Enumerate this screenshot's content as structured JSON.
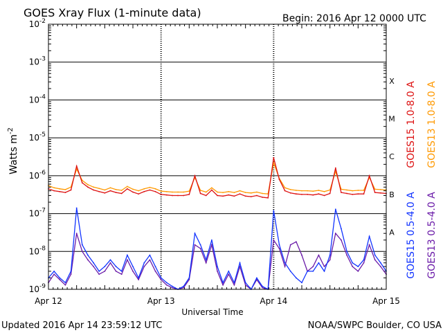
{
  "header": {
    "title": "GOES Xray Flux (1-minute data)",
    "begin": "Begin:  2016 Apr 12 0000 UTC"
  },
  "footer": {
    "updated": "Updated 2016 Apr 14 23:59:12 UTC",
    "credit": "NOAA/SWPC Boulder, CO USA"
  },
  "colors": {
    "goes15_long": "#dd1111",
    "goes13_long": "#ff9900",
    "goes15_short": "#1133ff",
    "goes13_short": "#6a1aa8",
    "frame": "#000000"
  },
  "chart_data": {
    "type": "line",
    "title": "GOES Xray Flux (1-minute data)",
    "xlabel": "Universal Time",
    "ylabel": "Watts m",
    "ylabel_sup": "-2",
    "y_scale": "log",
    "ylim": [
      1e-09,
      0.01
    ],
    "xlim": [
      0,
      3
    ],
    "grid": "horizontal lines at each decade, dotted vertical lines at day boundaries",
    "legend_placement": "right, vertical text",
    "x_ticks": [
      {
        "label": "Apr 12",
        "value": 0
      },
      {
        "label": "Apr 13",
        "value": 1
      },
      {
        "label": "Apr 14",
        "value": 2
      },
      {
        "label": "Apr 15",
        "value": 3
      }
    ],
    "y_ticks": [
      {
        "base": "10",
        "exp": "-2",
        "value": 0.01
      },
      {
        "base": "10",
        "exp": "-3",
        "value": 0.001
      },
      {
        "base": "10",
        "exp": "-4",
        "value": 0.0001
      },
      {
        "base": "10",
        "exp": "-5",
        "value": 1e-05
      },
      {
        "base": "10",
        "exp": "-6",
        "value": 1e-06
      },
      {
        "base": "10",
        "exp": "-7",
        "value": 1e-07
      },
      {
        "base": "10",
        "exp": "-8",
        "value": 1e-08
      },
      {
        "base": "10",
        "exp": "-9",
        "value": 1e-09
      }
    ],
    "flare_classes": [
      {
        "label": "X",
        "value": 0.00032
      },
      {
        "label": "M",
        "value": 3.2e-05
      },
      {
        "label": "C",
        "value": 3.2e-06
      },
      {
        "label": "B",
        "value": 3.2e-07
      },
      {
        "label": "A",
        "value": 3.2e-08
      }
    ],
    "series": [
      {
        "name": "GOES15 1.0-8.0 A",
        "color_key": "goes15_long",
        "x": [
          0,
          0.05,
          0.1,
          0.15,
          0.2,
          0.25,
          0.3,
          0.35,
          0.4,
          0.45,
          0.5,
          0.55,
          0.6,
          0.65,
          0.7,
          0.75,
          0.8,
          0.85,
          0.9,
          0.95,
          1.0,
          1.05,
          1.1,
          1.15,
          1.2,
          1.25,
          1.3,
          1.35,
          1.4,
          1.45,
          1.5,
          1.55,
          1.6,
          1.65,
          1.7,
          1.75,
          1.8,
          1.85,
          1.9,
          1.95,
          2.0,
          2.05,
          2.1,
          2.15,
          2.2,
          2.25,
          2.3,
          2.35,
          2.4,
          2.45,
          2.5,
          2.55,
          2.6,
          2.65,
          2.7,
          2.75,
          2.8,
          2.85,
          2.9,
          2.95,
          3.0
        ],
        "y": [
          4.5e-07,
          4e-07,
          3.8e-07,
          3.6e-07,
          4.2e-07,
          1.8e-06,
          6.5e-07,
          5e-07,
          4.2e-07,
          3.8e-07,
          3.5e-07,
          4e-07,
          3.6e-07,
          3.4e-07,
          4.5e-07,
          3.7e-07,
          3.3e-07,
          3.8e-07,
          4.2e-07,
          3.8e-07,
          3.2e-07,
          3.1e-07,
          3e-07,
          3e-07,
          3e-07,
          3.2e-07,
          1e-06,
          3.4e-07,
          3e-07,
          4.2e-07,
          3e-07,
          2.9e-07,
          3.1e-07,
          2.9e-07,
          3.3e-07,
          2.9e-07,
          2.8e-07,
          3e-07,
          2.7e-07,
          2.6e-07,
          3e-06,
          8e-07,
          4e-07,
          3.5e-07,
          3.3e-07,
          3.2e-07,
          3.2e-07,
          3.1e-07,
          3.3e-07,
          3e-07,
          3.4e-07,
          1.6e-06,
          3.6e-07,
          3.4e-07,
          3.2e-07,
          3.3e-07,
          3.3e-07,
          1e-06,
          3.6e-07,
          3.5e-07,
          3.4e-07
        ]
      },
      {
        "name": "GOES13 1.0-8.0 A",
        "color_key": "goes13_long",
        "x": [
          0,
          0.05,
          0.1,
          0.15,
          0.2,
          0.25,
          0.3,
          0.35,
          0.4,
          0.45,
          0.5,
          0.55,
          0.6,
          0.65,
          0.7,
          0.75,
          0.8,
          0.85,
          0.9,
          0.95,
          1.0,
          1.05,
          1.1,
          1.15,
          1.2,
          1.25,
          1.3,
          1.35,
          1.4,
          1.45,
          1.5,
          1.55,
          1.6,
          1.65,
          1.7,
          1.75,
          1.8,
          1.85,
          1.9,
          1.95,
          2.0,
          2.05,
          2.1,
          2.15,
          2.2,
          2.25,
          2.3,
          2.35,
          2.4,
          2.45,
          2.5,
          2.55,
          2.6,
          2.65,
          2.7,
          2.75,
          2.8,
          2.85,
          2.9,
          2.95,
          3.0
        ],
        "y": [
          5.5e-07,
          4.8e-07,
          4.5e-07,
          4.3e-07,
          5e-07,
          1.5e-06,
          7.5e-07,
          5.8e-07,
          5e-07,
          4.6e-07,
          4.2e-07,
          4.8e-07,
          4.3e-07,
          4.1e-07,
          5.2e-07,
          4.4e-07,
          4e-07,
          4.5e-07,
          4.9e-07,
          4.5e-07,
          3.9e-07,
          3.8e-07,
          3.7e-07,
          3.7e-07,
          3.7e-07,
          3.9e-07,
          9e-07,
          4.1e-07,
          3.7e-07,
          4.8e-07,
          3.7e-07,
          3.6e-07,
          3.8e-07,
          3.6e-07,
          4e-07,
          3.6e-07,
          3.5e-07,
          3.7e-07,
          3.4e-07,
          3.3e-07,
          2.2e-06,
          8.5e-07,
          4.8e-07,
          4.3e-07,
          4.1e-07,
          4e-07,
          4e-07,
          3.9e-07,
          4.1e-07,
          3.8e-07,
          4.2e-07,
          1.3e-06,
          4.4e-07,
          4.2e-07,
          4e-07,
          4.1e-07,
          4.1e-07,
          9e-07,
          4.4e-07,
          4.3e-07,
          4.2e-07
        ]
      },
      {
        "name": "GOES15 0.5-4.0 A",
        "color_key": "goes15_short",
        "x": [
          0,
          0.05,
          0.1,
          0.15,
          0.2,
          0.25,
          0.3,
          0.35,
          0.4,
          0.45,
          0.5,
          0.55,
          0.6,
          0.65,
          0.7,
          0.75,
          0.8,
          0.85,
          0.9,
          0.95,
          1.0,
          1.05,
          1.1,
          1.15,
          1.2,
          1.25,
          1.3,
          1.35,
          1.4,
          1.45,
          1.5,
          1.55,
          1.6,
          1.65,
          1.7,
          1.75,
          1.8,
          1.85,
          1.9,
          1.95,
          2.0,
          2.05,
          2.1,
          2.15,
          2.2,
          2.25,
          2.3,
          2.35,
          2.4,
          2.45,
          2.5,
          2.55,
          2.6,
          2.65,
          2.7,
          2.75,
          2.8,
          2.85,
          2.9,
          2.95,
          3.0
        ],
        "y": [
          2e-09,
          3e-09,
          2e-09,
          1.5e-09,
          3e-09,
          1.4e-07,
          1.5e-08,
          8e-09,
          5e-09,
          3e-09,
          4e-09,
          6e-09,
          4e-09,
          3e-09,
          8e-09,
          4e-09,
          2e-09,
          5e-09,
          8e-09,
          4e-09,
          2e-09,
          1.5e-09,
          1.2e-09,
          1e-09,
          1.2e-09,
          2e-09,
          3e-08,
          1.5e-08,
          6e-09,
          2e-08,
          4e-09,
          1.5e-09,
          3e-09,
          1.5e-09,
          5e-09,
          1.5e-09,
          1e-09,
          2e-09,
          1.2e-09,
          1e-09,
          1.2e-07,
          1.5e-08,
          5e-09,
          3e-09,
          2e-09,
          1.5e-09,
          3e-09,
          3e-09,
          5e-09,
          3e-09,
          8e-09,
          1.3e-07,
          4e-08,
          1e-08,
          5e-09,
          4e-09,
          6e-09,
          2.5e-08,
          8e-09,
          5e-09,
          3e-09
        ]
      },
      {
        "name": "GOES13 0.5-4.0 A",
        "color_key": "goes13_short",
        "x": [
          0,
          0.05,
          0.1,
          0.15,
          0.2,
          0.25,
          0.3,
          0.35,
          0.4,
          0.45,
          0.5,
          0.55,
          0.6,
          0.65,
          0.7,
          0.75,
          0.8,
          0.85,
          0.9,
          0.95,
          1.0,
          1.05,
          1.1,
          1.15,
          1.2,
          1.25,
          1.3,
          1.35,
          1.4,
          1.45,
          1.5,
          1.55,
          1.6,
          1.65,
          1.7,
          1.75,
          1.8,
          1.85,
          1.9,
          1.95,
          2.0,
          2.05,
          2.1,
          2.15,
          2.2,
          2.25,
          2.3,
          2.35,
          2.4,
          2.45,
          2.5,
          2.55,
          2.6,
          2.65,
          2.7,
          2.75,
          2.8,
          2.85,
          2.9,
          2.95,
          3.0
        ],
        "y": [
          1.5e-09,
          2.5e-09,
          1.8e-09,
          1.3e-09,
          2.5e-09,
          3e-08,
          1e-08,
          6e-09,
          4e-09,
          2.5e-09,
          3e-09,
          5e-09,
          3e-09,
          2.5e-09,
          6e-09,
          3e-09,
          1.8e-09,
          4e-09,
          6e-09,
          3e-09,
          1.8e-09,
          1.3e-09,
          1.1e-09,
          1e-09,
          1.1e-09,
          1.8e-09,
          1.5e-08,
          1.2e-08,
          5e-09,
          1.5e-08,
          3e-09,
          1.3e-09,
          2.5e-09,
          1.3e-09,
          4e-09,
          1.3e-09,
          1e-09,
          1.8e-09,
          1.1e-09,
          1e-09,
          2e-08,
          1.2e-08,
          4e-09,
          1.5e-08,
          1.8e-08,
          8e-09,
          3e-09,
          4e-09,
          8e-09,
          4e-09,
          6e-09,
          3e-08,
          2e-08,
          8e-09,
          4e-09,
          3e-09,
          5e-09,
          1.5e-08,
          6e-09,
          4e-09,
          2.5e-09
        ]
      }
    ]
  }
}
